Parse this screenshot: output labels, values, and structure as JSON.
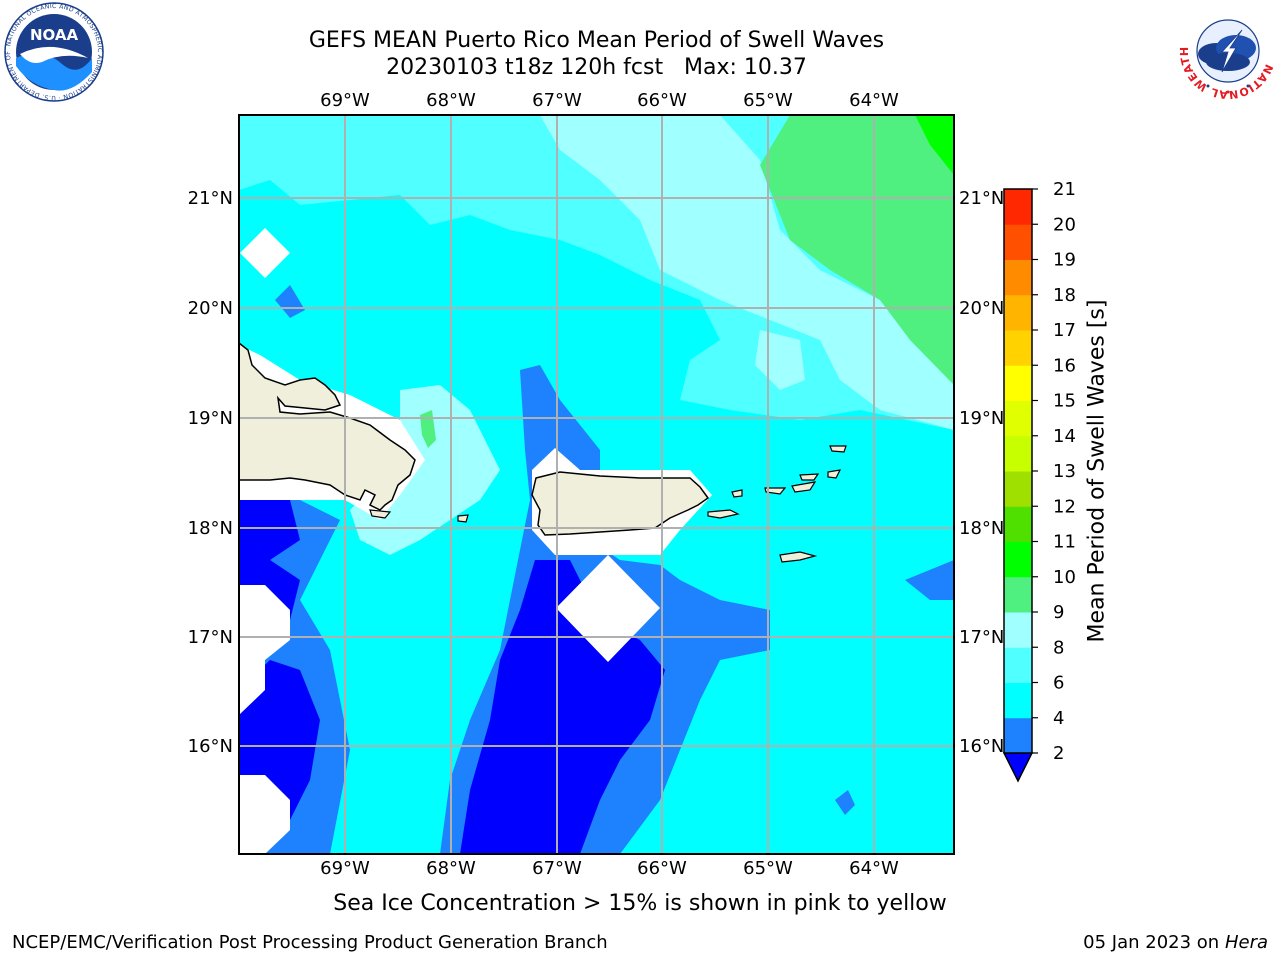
{
  "title_line1": "GEFS MEAN Puerto Rico Mean Period of Swell Waves",
  "title_line2": "20230103 t18z 120h fcst   Max: 10.37",
  "subtitle": "Sea Ice Concentration > 15% is shown in pink to yellow",
  "footer_left": "NCEP/EMC/Verification Post Processing Product Generation Branch",
  "footer_right_date": "05 Jan 2023 on ",
  "footer_right_host": "Hera",
  "map": {
    "lon_labels": [
      "69°W",
      "68°W",
      "67°W",
      "66°W",
      "65°W",
      "64°W"
    ],
    "lat_labels": [
      "21°N",
      "20°N",
      "19°N",
      "18°N",
      "17°N",
      "16°N"
    ],
    "lon_range": [
      -70.0,
      -63.25
    ],
    "lat_range": [
      15.0,
      21.75
    ]
  },
  "colorbar": {
    "label": "Mean Period of Swell Waves [s]",
    "ticks": [
      "2",
      "4",
      "6",
      "8",
      "9",
      "10",
      "11",
      "12",
      "13",
      "14",
      "15",
      "16",
      "17",
      "18",
      "19",
      "20",
      "21"
    ],
    "colors": [
      "#0000ff",
      "#1e82ff",
      "#00ffff",
      "#50ffff",
      "#a0ffff",
      "#50f080",
      "#00ff00",
      "#50e000",
      "#a0e000",
      "#c8ff00",
      "#e0ff00",
      "#ffff00",
      "#ffd200",
      "#ffb400",
      "#ff8c00",
      "#ff5000",
      "#ff2800",
      "#ff0000"
    ]
  },
  "logos": {
    "noaa_text": "NOAA",
    "noaa_ring_text": "NATIONAL OCEANIC AND ATMOSPHERIC ADMINISTRATION · U.S. DEPARTMENT OF COMMERCE",
    "nws_ring_text": "NATIONAL WEATHER SERVICE"
  }
}
